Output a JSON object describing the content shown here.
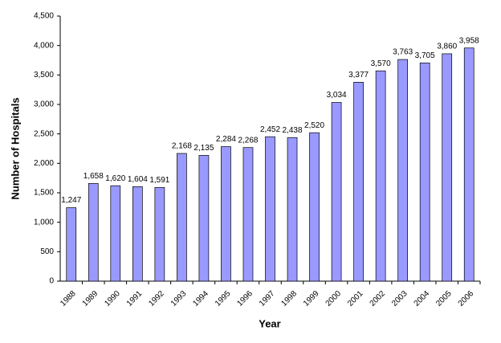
{
  "chart_data": {
    "type": "bar",
    "x_label": "Year",
    "y_label": "Number of Hospitals",
    "categories": [
      "1988",
      "1989",
      "1990",
      "1991",
      "1992",
      "1993",
      "1994",
      "1995",
      "1996",
      "1997",
      "1998",
      "1999",
      "2000",
      "2001",
      "2002",
      "2003",
      "2004",
      "2005",
      "2006"
    ],
    "values": [
      1247,
      1658,
      1620,
      1604,
      1591,
      2168,
      2135,
      2284,
      2268,
      2452,
      2438,
      2520,
      3034,
      3377,
      3570,
      3763,
      3705,
      3860,
      3958
    ],
    "value_labels": [
      "1,247",
      "1,658",
      "1,620",
      "1,604",
      "1,591",
      "2,168",
      "2,135",
      "2,284",
      "2,268",
      "2,452",
      "2,438",
      "2,520",
      "3,034",
      "3,377",
      "3,570",
      "3,763",
      "3,705",
      "3,860",
      "3,958"
    ],
    "color": "#9999ff",
    "ylim": [
      0,
      4500
    ],
    "yticks": [
      0,
      500,
      {
        "value": 1000,
        "label": "1,000"
      },
      {
        "value": 1500,
        "label": "1,500"
      },
      {
        "value": 2000,
        "label": "2,000"
      },
      {
        "value": 2500,
        "label": "2,500"
      },
      {
        "value": 3000,
        "label": "3,000"
      },
      {
        "value": 3500,
        "label": "3,500"
      },
      {
        "value": 4000,
        "label": "4,000"
      },
      {
        "value": 4500,
        "label": "4,500"
      }
    ]
  }
}
